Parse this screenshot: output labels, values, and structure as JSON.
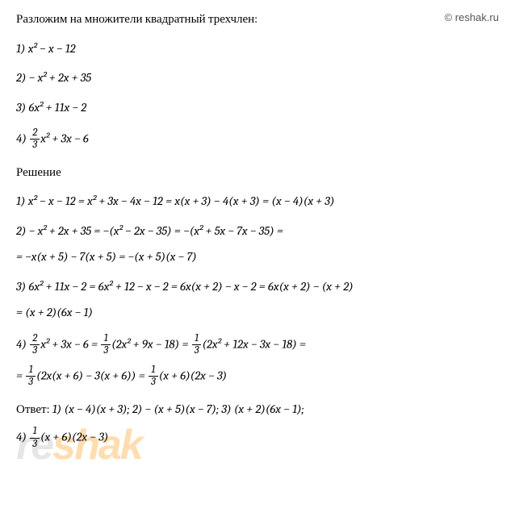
{
  "watermark": {
    "copyright": "© reshak.ru",
    "logo_re": "re",
    "logo_shak": "shak"
  },
  "header": "Разложим на множители квадратный трехчлен:",
  "problems": {
    "p1_label": "1)  ",
    "p1_expr": "x² − x − 12",
    "p2_label": "2)  ",
    "p2_expr": "− x² + 2x + 35",
    "p3_label": "3)  ",
    "p3_expr": "6x² + 11x − 2",
    "p4_label": "4) ",
    "p4_expr": "x² + 3x − 6"
  },
  "frac": {
    "two": "2",
    "three": "3",
    "one": "1"
  },
  "solution_header": "Решение",
  "solutions": {
    "s1": "1)  x² − x − 12 = x² + 3x − 4x − 12 = x(x + 3) − 4(x + 3) = (x − 4)(x + 3)",
    "s2a": "2) − x² + 2x + 35 = −(x² − 2x − 35) = −(x² + 5x − 7x − 35) =",
    "s2b": "= −x(x + 5) − 7(x + 5) = −(x + 5)(x − 7)",
    "s3a": "3)  6x² + 11x − 2 = 6x² + 12 − x − 2 = 6x(x + 2) − x − 2 = 6x(x + 2) − (x + 2)",
    "s3b": "= (x + 2)(6x − 1)",
    "s4a_1": "4) ",
    "s4a_2": "x² + 3x − 6 = ",
    "s4a_3": "(2x² + 9x − 18) = ",
    "s4a_4": "(2x² + 12x − 3x − 18) =",
    "s4b_1": "= ",
    "s4b_2": "(2x(x + 6) − 3(x + 6)) = ",
    "s4b_3": "(x + 6)(2x − 3)"
  },
  "answer": {
    "label": "Ответ: ",
    "a1": "1) (x − 4)(x + 3); 2) − (x + 5)(x − 7); 3) (x + 2)(6x − 1);",
    "a4_1": "4) ",
    "a4_2": "(x + 6)(2x − 3)"
  }
}
